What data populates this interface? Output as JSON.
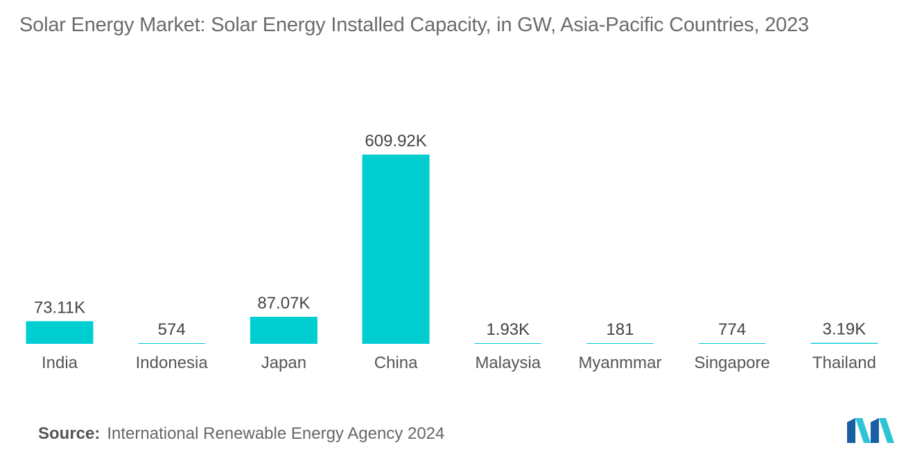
{
  "title": "Solar Energy Market: Solar Energy Installed Capacity, in GW, Asia-Pacific Countries, 2023",
  "source": {
    "label": "Source:",
    "text": "International Renewable Energy Agency 2024"
  },
  "logo": {
    "icon": "mordor-intelligence-logo-icon",
    "colors": [
      "#1a5fa3",
      "#2ec4d6"
    ]
  },
  "colors": {
    "bar": "#00ced1",
    "title": "#6b6b6b",
    "text": "#555555"
  },
  "chart_data": {
    "type": "bar",
    "title": "Solar Energy Market: Solar Energy Installed Capacity, in GW, Asia-Pacific Countries, 2023",
    "categories": [
      "India",
      "Indonesia",
      "Japan",
      "China",
      "Malaysia",
      "Myanmmar",
      "Singapore",
      "Thailand"
    ],
    "values": [
      73110,
      574,
      87070,
      609920,
      1930,
      181,
      774,
      3190
    ],
    "labels": [
      "73.11K",
      "574",
      "87.07K",
      "609.92K",
      "1.93K",
      "181",
      "774",
      "3.19K"
    ],
    "xlabel": "",
    "ylabel": "",
    "ylim": [
      0,
      609920
    ],
    "grid": false,
    "legend": "none"
  }
}
